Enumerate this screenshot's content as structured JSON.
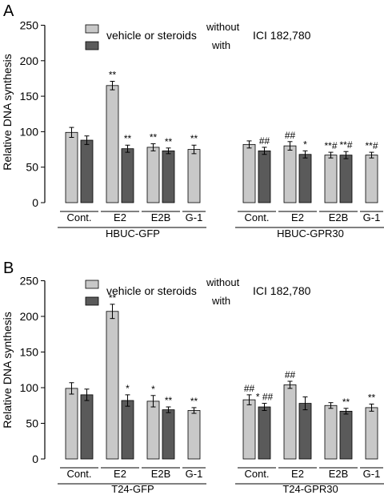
{
  "colors": {
    "light": "#c8c8c8",
    "dark": "#5a5a5a",
    "axis": "#000000"
  },
  "legend": {
    "vehicle_label": "vehicle or steroids",
    "without_label": "without",
    "with_label": "with",
    "ici_label": "ICI 182,780"
  },
  "chart_data": [
    {
      "panel_label": "A",
      "type": "bar",
      "ylabel": "Relative DNA synthesis",
      "ylim": [
        0,
        250
      ],
      "yticks": [
        0,
        50,
        100,
        150,
        200,
        250
      ],
      "series": [
        "without",
        "with"
      ],
      "groups": [
        {
          "name": "HBUC-GFP",
          "categories": [
            {
              "label": "Cont.",
              "bars": [
                {
                  "value": 99,
                  "err": 7,
                  "mark": ""
                },
                {
                  "value": 88,
                  "err": 6,
                  "mark": ""
                }
              ]
            },
            {
              "label": "E2",
              "bars": [
                {
                  "value": 165,
                  "err": 6,
                  "mark": "**"
                },
                {
                  "value": 76,
                  "err": 5,
                  "mark": "**"
                }
              ]
            },
            {
              "label": "E2B",
              "bars": [
                {
                  "value": 78,
                  "err": 5,
                  "mark": "**"
                },
                {
                  "value": 73,
                  "err": 4,
                  "mark": "**"
                }
              ]
            },
            {
              "label": "G-1",
              "bars": [
                {
                  "value": 75,
                  "err": 6,
                  "mark": "**"
                }
              ]
            }
          ]
        },
        {
          "name": "HBUC-GPR30",
          "categories": [
            {
              "label": "Cont.",
              "bars": [
                {
                  "value": 82,
                  "err": 5,
                  "mark": ""
                },
                {
                  "value": 73,
                  "err": 5,
                  "mark": "##"
                }
              ]
            },
            {
              "label": "E2",
              "bars": [
                {
                  "value": 80,
                  "err": 6,
                  "mark": "##"
                },
                {
                  "value": 68,
                  "err": 5,
                  "mark": "*"
                }
              ]
            },
            {
              "label": "E2B",
              "bars": [
                {
                  "value": 67,
                  "err": 4,
                  "mark": "**#"
                },
                {
                  "value": 67,
                  "err": 5,
                  "mark": "**#"
                }
              ]
            },
            {
              "label": "G-1",
              "bars": [
                {
                  "value": 67,
                  "err": 4,
                  "mark": "**#"
                }
              ]
            }
          ]
        }
      ]
    },
    {
      "panel_label": "B",
      "type": "bar",
      "ylabel": "Relative DNA synthesis",
      "ylim": [
        0,
        250
      ],
      "yticks": [
        0,
        50,
        100,
        150,
        200,
        250
      ],
      "series": [
        "without",
        "with"
      ],
      "groups": [
        {
          "name": "T24-GFP",
          "categories": [
            {
              "label": "Cont.",
              "bars": [
                {
                  "value": 99,
                  "err": 8,
                  "mark": ""
                },
                {
                  "value": 90,
                  "err": 8,
                  "mark": ""
                }
              ]
            },
            {
              "label": "E2",
              "bars": [
                {
                  "value": 207,
                  "err": 10,
                  "mark": "**"
                },
                {
                  "value": 82,
                  "err": 8,
                  "mark": "*"
                }
              ]
            },
            {
              "label": "E2B",
              "bars": [
                {
                  "value": 81,
                  "err": 8,
                  "mark": "*"
                },
                {
                  "value": 69,
                  "err": 4,
                  "mark": "**"
                }
              ]
            },
            {
              "label": "G-1",
              "bars": [
                {
                  "value": 68,
                  "err": 4,
                  "mark": "**"
                }
              ]
            }
          ]
        },
        {
          "name": "T24-GPR30",
          "categories": [
            {
              "label": "Cont.",
              "bars": [
                {
                  "value": 83,
                  "err": 7,
                  "mark": "##"
                },
                {
                  "value": 73,
                  "err": 5,
                  "mark": "* ##"
                }
              ]
            },
            {
              "label": "E2",
              "bars": [
                {
                  "value": 104,
                  "err": 5,
                  "mark": "##"
                },
                {
                  "value": 78,
                  "err": 9,
                  "mark": ""
                }
              ]
            },
            {
              "label": "E2B",
              "bars": [
                {
                  "value": 75,
                  "err": 4,
                  "mark": ""
                },
                {
                  "value": 67,
                  "err": 4,
                  "mark": "**"
                }
              ]
            },
            {
              "label": "G-1",
              "bars": [
                {
                  "value": 72,
                  "err": 5,
                  "mark": "**"
                }
              ]
            }
          ]
        }
      ]
    }
  ]
}
